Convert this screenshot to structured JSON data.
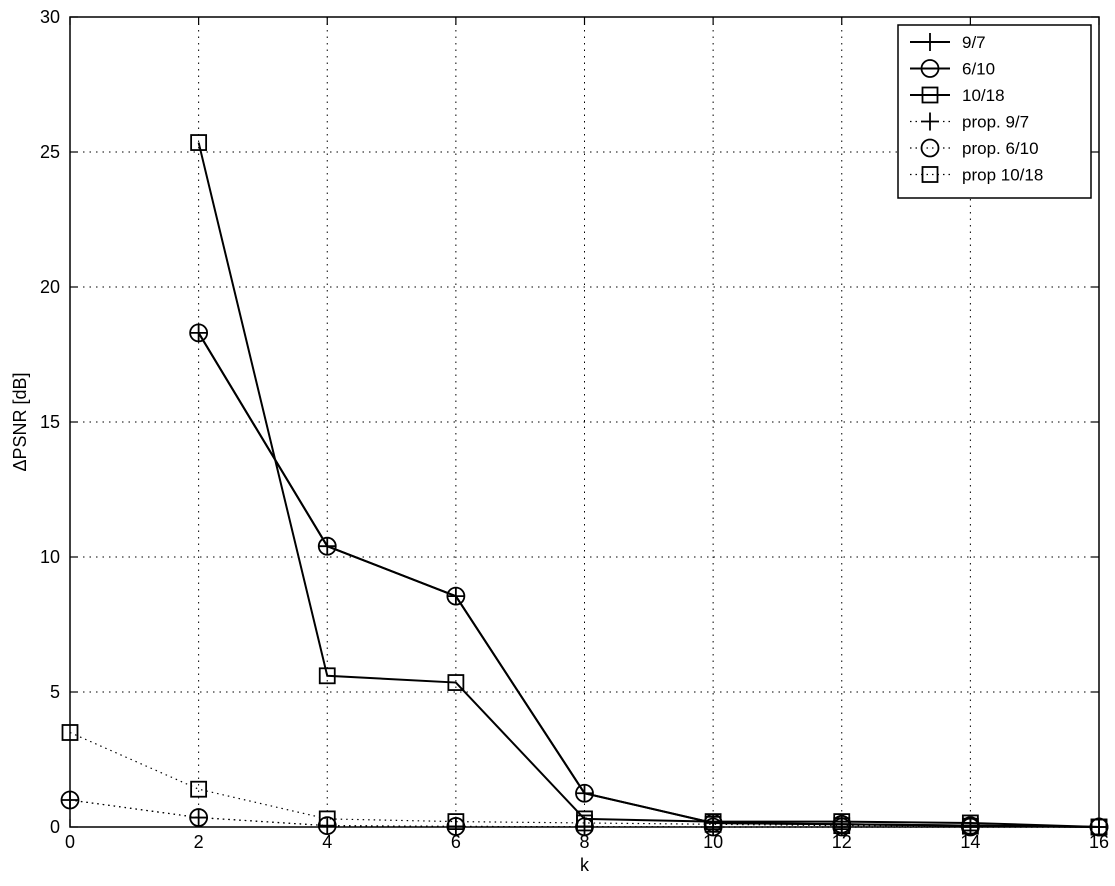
{
  "chart_data": {
    "type": "line",
    "title": "",
    "xlabel": "k",
    "ylabel": "ΔPSNR [dB]",
    "xlim": [
      0,
      16
    ],
    "ylim": [
      0,
      30
    ],
    "xticks": [
      0,
      2,
      4,
      6,
      8,
      10,
      12,
      14,
      16
    ],
    "yticks": [
      0,
      5,
      10,
      15,
      20,
      25,
      30
    ],
    "grid": true,
    "legend_position": "top-right",
    "series": [
      {
        "name": "9/7",
        "marker": "plus",
        "linestyle": "solid",
        "x": [
          2,
          4,
          6,
          8,
          10,
          12,
          14,
          16
        ],
        "y": [
          18.3,
          10.4,
          8.55,
          1.25,
          0.15,
          0.1,
          0.05,
          0.0
        ]
      },
      {
        "name": "6/10",
        "marker": "circle",
        "linestyle": "solid",
        "x": [
          2,
          4,
          6,
          8,
          10,
          12,
          14,
          16
        ],
        "y": [
          18.3,
          10.4,
          8.55,
          1.25,
          0.15,
          0.1,
          0.05,
          0.0
        ]
      },
      {
        "name": "10/18",
        "marker": "square",
        "linestyle": "solid",
        "x": [
          2,
          4,
          6,
          8,
          10,
          12,
          14,
          16
        ],
        "y": [
          25.35,
          5.6,
          5.35,
          0.3,
          0.2,
          0.2,
          0.15,
          0.0
        ]
      },
      {
        "name": "prop. 9/7",
        "marker": "plus",
        "linestyle": "dotted",
        "x": [
          0,
          2,
          4,
          6,
          8,
          10,
          12,
          14,
          16
        ],
        "y": [
          1.0,
          0.35,
          0.05,
          0.02,
          0.01,
          0.0,
          0.0,
          0.0,
          0.0
        ]
      },
      {
        "name": "prop. 6/10",
        "marker": "circle",
        "linestyle": "dotted",
        "x": [
          0,
          2,
          4,
          6,
          8,
          10,
          12,
          14,
          16
        ],
        "y": [
          1.0,
          0.35,
          0.05,
          0.02,
          0.01,
          0.0,
          0.0,
          0.0,
          0.0
        ]
      },
      {
        "name": "prop 10/18",
        "marker": "square",
        "linestyle": "dotted",
        "x": [
          0,
          2,
          4,
          6,
          8,
          10,
          12,
          14,
          16
        ],
        "y": [
          3.5,
          1.4,
          0.3,
          0.2,
          0.15,
          0.1,
          0.05,
          0.03,
          0.0
        ]
      }
    ]
  }
}
